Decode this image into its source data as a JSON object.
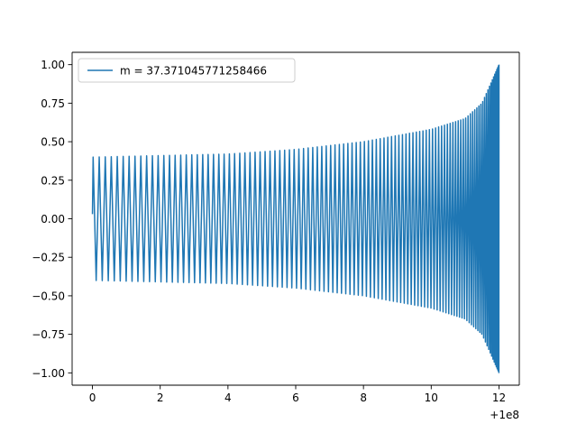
{
  "chart_data": {
    "type": "line",
    "title": "",
    "xlabel": "",
    "ylabel": "",
    "x_offset_label": "+1e8",
    "xlim": [
      -0.6,
      12.6
    ],
    "ylim": [
      -1.08,
      1.08
    ],
    "x_ticks": [
      0,
      2,
      4,
      6,
      8,
      10,
      12
    ],
    "x_tick_labels": [
      "0",
      "2",
      "4",
      "6",
      "8",
      "10",
      "12"
    ],
    "y_ticks": [
      -1.0,
      -0.75,
      -0.5,
      -0.25,
      0.0,
      0.25,
      0.5,
      0.75,
      1.0
    ],
    "y_tick_labels": [
      "−1.00",
      "−0.75",
      "−0.50",
      "−0.25",
      "0.00",
      "0.25",
      "0.50",
      "0.75",
      "1.00"
    ],
    "grid": false,
    "legend_position": "top-left",
    "series": [
      {
        "name": "m = 37.371045771258466",
        "color": "#1f77b4",
        "x_start": 0,
        "x_end": 12,
        "start_value": 0.03,
        "envelope": {
          "x": [
            0,
            2,
            4,
            6,
            8,
            10,
            11,
            11.5,
            12
          ],
          "amplitude": [
            0.4,
            0.41,
            0.42,
            0.45,
            0.5,
            0.58,
            0.65,
            0.75,
            1.0
          ]
        }
      }
    ]
  }
}
